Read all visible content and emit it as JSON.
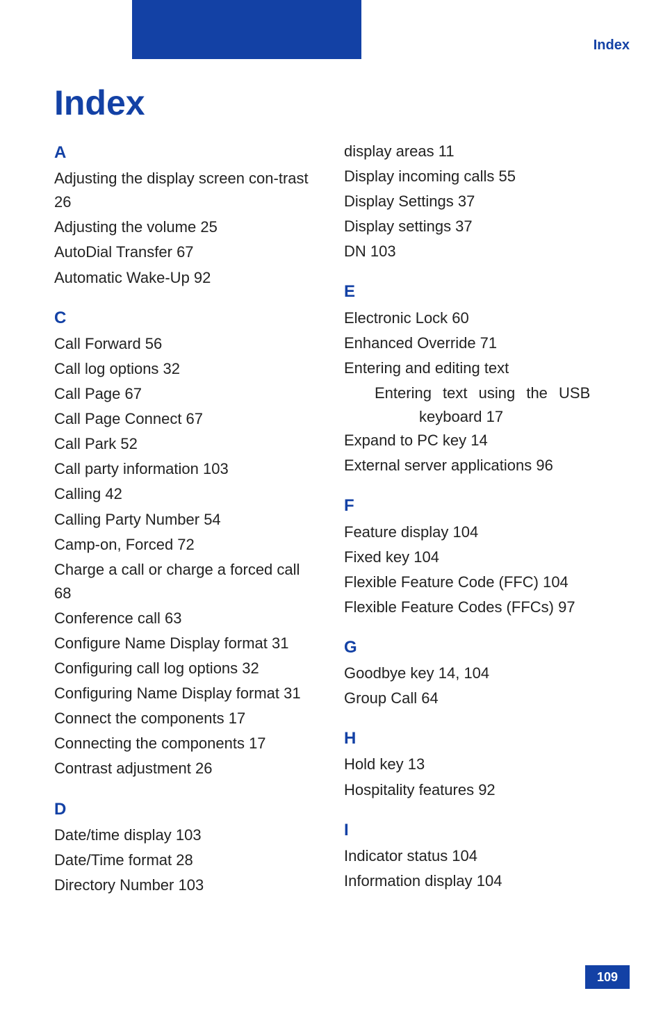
{
  "header": {
    "label": "Index"
  },
  "title": "Index",
  "page_number": "109",
  "colors": {
    "accent": "#1341a5",
    "body_text": "#222222",
    "background": "#ffffff",
    "page_number_bg": "#1341a5",
    "page_number_text": "#ffffff"
  },
  "typography": {
    "title_fontsize": 50,
    "letter_fontsize": 24,
    "body_fontsize": 22,
    "header_label_fontsize": 20,
    "page_number_fontsize": 18,
    "font_family": "Arial"
  },
  "left": {
    "A": {
      "letter": "A",
      "items": [
        "Adjusting the display screen con-trast 26",
        "Adjusting the volume 25",
        "AutoDial Transfer 67",
        "Automatic Wake-Up 92"
      ]
    },
    "C": {
      "letter": "C",
      "items": [
        "Call Forward 56",
        "Call log options 32",
        "Call Page 67",
        "Call Page Connect 67",
        "Call Park 52",
        "Call party information 103",
        "Calling 42",
        "Calling Party Number 54",
        "Camp-on, Forced 72",
        "Charge a call or charge a forced call 68",
        "Conference call 63",
        "Configure Name Display format 31",
        "Configuring call log options 32",
        "Configuring Name Display format 31",
        "Connect the components 17",
        "Connecting the components 17",
        "Contrast adjustment 26"
      ]
    },
    "D": {
      "letter": "D",
      "items": [
        "Date/time display 103",
        "Date/Time format 28",
        "Directory Number 103"
      ]
    }
  },
  "right": {
    "D_continued": {
      "items": [
        "display areas 11",
        "Display incoming calls 55",
        "Display Settings 37",
        "Display settings 37",
        "DN 103"
      ]
    },
    "E": {
      "letter": "E",
      "items": [
        "Electronic Lock 60",
        "Enhanced Override 71",
        "Entering and editing text"
      ],
      "sub_line1": "Entering text using the USB",
      "sub_line2": "keyboard 17",
      "items_after": [
        "Expand to PC key 14",
        "External server applications 96"
      ]
    },
    "F": {
      "letter": "F",
      "items": [
        "Feature display 104",
        "Fixed key 104",
        "Flexible Feature Code (FFC) 104",
        "Flexible Feature Codes (FFCs) 97"
      ]
    },
    "G": {
      "letter": "G",
      "items": [
        "Goodbye key 14, 104",
        "Group Call 64"
      ]
    },
    "H": {
      "letter": "H",
      "items": [
        "Hold key 13",
        "Hospitality features 92"
      ]
    },
    "I": {
      "letter": "I",
      "items": [
        "Indicator status 104",
        "Information display 104"
      ]
    }
  }
}
